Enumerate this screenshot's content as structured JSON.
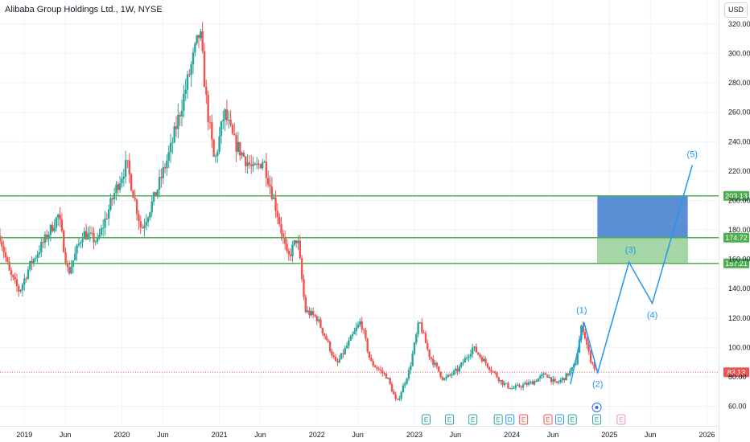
{
  "header": {
    "title": "Alibaba Group Holdings Ltd., 1W, NYSE",
    "currency": "USD"
  },
  "colors": {
    "up": "#26a69a",
    "down": "#ef5350",
    "line": "#4caf50",
    "wave": "#2196f3",
    "box_top": "#5b8fd3",
    "box_bottom": "#a5d6a7",
    "price": "#ef5350"
  },
  "chart_data": {
    "type": "candlestick",
    "x_axis": {
      "ticks": [
        "2019",
        "Jun",
        "2020",
        "Jun",
        "2021",
        "Jun",
        "2022",
        "Jun",
        "2023",
        "Jun",
        "2024",
        "Jun",
        "2025",
        "Jun",
        "2026"
      ]
    },
    "y_axis": {
      "range": [
        52,
        326
      ],
      "ticks": [
        60,
        80,
        100,
        120,
        140,
        160,
        180,
        200,
        220,
        240,
        260,
        280,
        300,
        320
      ],
      "tick_labels": [
        "60.00",
        "80.00",
        "100.00",
        "120.00",
        "140.00",
        "160.00",
        "180.00",
        "200.00",
        "220.00",
        "240.00",
        "260.00",
        "280.00",
        "300.00",
        "320.00"
      ]
    },
    "price_path": [
      {
        "t": 2018.75,
        "v": 176
      },
      {
        "t": 2018.85,
        "v": 150
      },
      {
        "t": 2018.95,
        "v": 138
      },
      {
        "t": 2019.05,
        "v": 155
      },
      {
        "t": 2019.2,
        "v": 172
      },
      {
        "t": 2019.35,
        "v": 190
      },
      {
        "t": 2019.45,
        "v": 150
      },
      {
        "t": 2019.6,
        "v": 178
      },
      {
        "t": 2019.75,
        "v": 172
      },
      {
        "t": 2019.95,
        "v": 210
      },
      {
        "t": 2020.05,
        "v": 225
      },
      {
        "t": 2020.2,
        "v": 180
      },
      {
        "t": 2020.35,
        "v": 205
      },
      {
        "t": 2020.5,
        "v": 235
      },
      {
        "t": 2020.65,
        "v": 275
      },
      {
        "t": 2020.8,
        "v": 315
      },
      {
        "t": 2020.87,
        "v": 265
      },
      {
        "t": 2020.95,
        "v": 225
      },
      {
        "t": 2021.05,
        "v": 260
      },
      {
        "t": 2021.15,
        "v": 240
      },
      {
        "t": 2021.35,
        "v": 220
      },
      {
        "t": 2021.45,
        "v": 228
      },
      {
        "t": 2021.6,
        "v": 190
      },
      {
        "t": 2021.7,
        "v": 160
      },
      {
        "t": 2021.8,
        "v": 175
      },
      {
        "t": 2021.88,
        "v": 125
      },
      {
        "t": 2022.0,
        "v": 120
      },
      {
        "t": 2022.1,
        "v": 105
      },
      {
        "t": 2022.2,
        "v": 88
      },
      {
        "t": 2022.3,
        "v": 100
      },
      {
        "t": 2022.45,
        "v": 118
      },
      {
        "t": 2022.55,
        "v": 90
      },
      {
        "t": 2022.72,
        "v": 80
      },
      {
        "t": 2022.82,
        "v": 62
      },
      {
        "t": 2022.95,
        "v": 85
      },
      {
        "t": 2023.05,
        "v": 118
      },
      {
        "t": 2023.15,
        "v": 95
      },
      {
        "t": 2023.3,
        "v": 78
      },
      {
        "t": 2023.45,
        "v": 85
      },
      {
        "t": 2023.6,
        "v": 100
      },
      {
        "t": 2023.75,
        "v": 88
      },
      {
        "t": 2023.9,
        "v": 76
      },
      {
        "t": 2024.0,
        "v": 72
      },
      {
        "t": 2024.1,
        "v": 74
      },
      {
        "t": 2024.2,
        "v": 76
      },
      {
        "t": 2024.35,
        "v": 82
      },
      {
        "t": 2024.45,
        "v": 75
      },
      {
        "t": 2024.55,
        "v": 80
      },
      {
        "t": 2024.65,
        "v": 88
      },
      {
        "t": 2024.72,
        "v": 116
      },
      {
        "t": 2024.8,
        "v": 93
      },
      {
        "t": 2024.87,
        "v": 83
      }
    ],
    "horizontal_lines": [
      {
        "value": 203.13,
        "label": "203.13"
      },
      {
        "value": 174.72,
        "label": "174.72"
      },
      {
        "value": 157.21,
        "label": "157.21"
      }
    ],
    "current_price": {
      "value": 83.13,
      "label": "83.13"
    },
    "target_box": {
      "t_start": 2024.88,
      "t_end": 2025.8,
      "top": 203.13,
      "mid": 174.72,
      "bottom": 157.21
    },
    "wave_projection": [
      {
        "t": 2024.74,
        "v": 117,
        "label": "(1)"
      },
      {
        "t": 2024.88,
        "v": 83,
        "label": "(2)"
      },
      {
        "t": 2025.2,
        "v": 158,
        "label": "(3)"
      },
      {
        "t": 2025.44,
        "v": 130,
        "label": "(4)"
      },
      {
        "t": 2025.85,
        "v": 224,
        "label": "(5)"
      }
    ],
    "event_markers": [
      {
        "t": 2023.12,
        "label": "E",
        "color": "#26a69a"
      },
      {
        "t": 2023.36,
        "label": "E",
        "color": "#26a69a"
      },
      {
        "t": 2023.6,
        "label": "E",
        "color": "#26a69a"
      },
      {
        "t": 2023.86,
        "label": "E",
        "color": "#26a69a"
      },
      {
        "t": 2023.98,
        "label": "D",
        "color": "#2196f3"
      },
      {
        "t": 2024.12,
        "label": "E",
        "color": "#ef5350"
      },
      {
        "t": 2024.37,
        "label": "E",
        "color": "#ef5350"
      },
      {
        "t": 2024.49,
        "label": "D",
        "color": "#2196f3"
      },
      {
        "t": 2024.62,
        "label": "E",
        "color": "#26a69a"
      },
      {
        "t": 2024.87,
        "label": "E",
        "color": "#26a69a"
      },
      {
        "t": 2025.12,
        "label": "E",
        "color": "#f48fb1"
      }
    ]
  }
}
